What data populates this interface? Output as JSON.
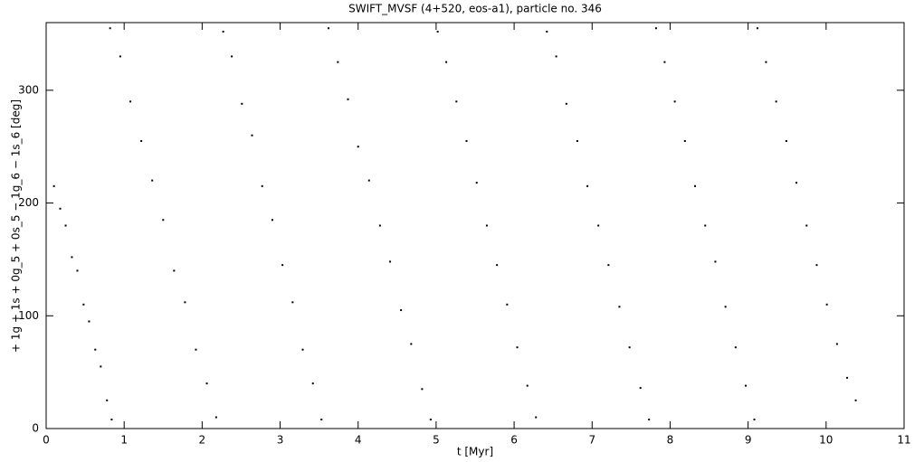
{
  "chart_data": {
    "type": "scatter",
    "title": "SWIFT_MVSF (4+520, eos-a1), particle no. 346",
    "x_label": "t [Myr]",
    "y_label": "+ 1g + 1s + 0g_5 + 0s_5 − 1g_6 − 1s_6 [deg]",
    "xlim": [
      0,
      11
    ],
    "ylim": [
      0,
      360
    ],
    "xticks": [
      0,
      1,
      2,
      3,
      4,
      5,
      6,
      7,
      8,
      9,
      10,
      11
    ],
    "yticks": [
      0,
      100,
      200,
      300
    ],
    "color": "#000000",
    "x": [
      0.1,
      0.18,
      0.25,
      0.33,
      0.4,
      0.48,
      0.55,
      0.63,
      0.7,
      0.78,
      0.84,
      0.82,
      0.95,
      1.08,
      1.22,
      1.36,
      1.5,
      1.64,
      1.78,
      1.92,
      2.06,
      2.18,
      2.27,
      2.38,
      2.51,
      2.64,
      2.77,
      2.9,
      3.03,
      3.16,
      3.29,
      3.42,
      3.53,
      3.62,
      3.74,
      3.87,
      4.0,
      4.14,
      4.28,
      4.41,
      4.55,
      4.68,
      4.82,
      4.93,
      5.02,
      5.13,
      5.26,
      5.39,
      5.52,
      5.65,
      5.78,
      5.91,
      6.04,
      6.17,
      6.28,
      6.42,
      6.54,
      6.67,
      6.81,
      6.94,
      7.08,
      7.21,
      7.35,
      7.48,
      7.62,
      7.73,
      7.82,
      7.93,
      8.06,
      8.19,
      8.32,
      8.45,
      8.58,
      8.71,
      8.84,
      8.97,
      9.08,
      9.12,
      9.23,
      9.36,
      9.49,
      9.62,
      9.75,
      9.88,
      10.01,
      10.14,
      10.27,
      10.38
    ],
    "values": [
      215,
      195,
      180,
      152,
      140,
      110,
      95,
      70,
      55,
      25,
      8,
      355,
      330,
      290,
      255,
      220,
      185,
      140,
      112,
      70,
      40,
      10,
      352,
      330,
      288,
      260,
      215,
      185,
      145,
      112,
      70,
      40,
      8,
      355,
      325,
      292,
      250,
      220,
      180,
      148,
      105,
      75,
      35,
      8,
      352,
      325,
      290,
      255,
      218,
      180,
      145,
      110,
      72,
      38,
      10,
      352,
      330,
      288,
      255,
      215,
      180,
      145,
      108,
      72,
      36,
      8,
      355,
      325,
      290,
      255,
      215,
      180,
      148,
      108,
      72,
      38,
      8,
      355,
      325,
      290,
      255,
      218,
      180,
      145,
      110,
      75,
      45,
      25
    ]
  }
}
